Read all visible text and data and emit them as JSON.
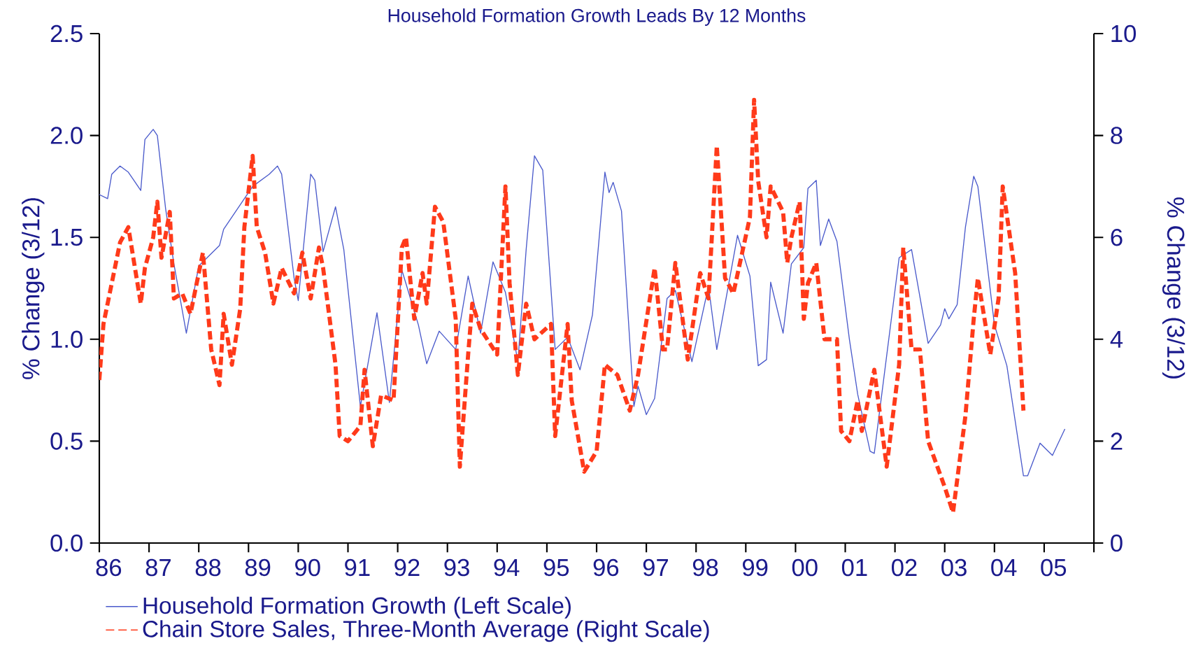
{
  "chart_data": {
    "type": "line",
    "title": "Household Formation Growth Leads By 12 Months",
    "ylabel": "% Change (3/12)",
    "y2label": "% Change (3/12)",
    "xlim": [
      "1986",
      "2006"
    ],
    "ylim": [
      0,
      2.5
    ],
    "y2lim": [
      0,
      10
    ],
    "xticks": [
      {
        "value": "1986",
        "label": "86"
      },
      {
        "value": "1987",
        "label": "87"
      },
      {
        "value": "1988",
        "label": "88"
      },
      {
        "value": "1989",
        "label": "89"
      },
      {
        "value": "1990",
        "label": "90"
      },
      {
        "value": "1991",
        "label": "91"
      },
      {
        "value": "1992",
        "label": "92"
      },
      {
        "value": "1993",
        "label": "93"
      },
      {
        "value": "1994",
        "label": "94"
      },
      {
        "value": "1995",
        "label": "95"
      },
      {
        "value": "1996",
        "label": "96"
      },
      {
        "value": "1997",
        "label": "97"
      },
      {
        "value": "1998",
        "label": "98"
      },
      {
        "value": "1999",
        "label": "99"
      },
      {
        "value": "2000",
        "label": "00"
      },
      {
        "value": "2001",
        "label": "01"
      },
      {
        "value": "2002",
        "label": "02"
      },
      {
        "value": "2003",
        "label": "03"
      },
      {
        "value": "2004",
        "label": "04"
      },
      {
        "value": "2005",
        "label": "05"
      },
      {
        "value": "2006",
        "label": null
      }
    ],
    "yticks": [
      {
        "value": 0,
        "label": "0.0"
      },
      0.5,
      {
        "value": 1,
        "label": "1.0"
      },
      1.5,
      {
        "value": 2,
        "label": "2.0"
      },
      2.5
    ],
    "y2ticks": [
      0,
      2,
      4,
      6,
      8,
      10
    ],
    "legend": "bottom",
    "series": [
      {
        "name": "Household Formation Growth (Left Scale)",
        "color": "#4a5acb",
        "line_style": "solid",
        "x": [
          "1986-01",
          "1986-03",
          "1986-04",
          "1986-06",
          "1986-08",
          "1986-11",
          "1986-12",
          "1987-02",
          "1987-03",
          "1987-05",
          "1987-07",
          "1987-10",
          "1988-01",
          "1988-06",
          "1988-07",
          "1988-09",
          "1989-02",
          "1989-06",
          "1989-08",
          "1989-09",
          "1989-12",
          "1990-01",
          "1990-04",
          "1990-05",
          "1990-07",
          "1990-10",
          "1990-12",
          "1991-04",
          "1991-08",
          "1991-11",
          "1992-02",
          "1992-06",
          "1992-08",
          "1992-11",
          "1993-03",
          "1993-06",
          "1993-09",
          "1993-12",
          "1994-03",
          "1994-06",
          "1994-08",
          "1994-10",
          "1994-12",
          "1995-03",
          "1995-06",
          "1995-09",
          "1995-12",
          "1996-03",
          "1996-04",
          "1996-05",
          "1996-07",
          "1996-10",
          "1996-11",
          "1997-01",
          "1997-03",
          "1997-06",
          "1997-08",
          "1997-12",
          "1998-04",
          "1998-06",
          "1998-11",
          "1999-02",
          "1999-04",
          "1999-06",
          "1999-07",
          "1999-10",
          "1999-12",
          "2000-03",
          "2000-04",
          "2000-06",
          "2000-07",
          "2000-09",
          "2000-11",
          "2001-02",
          "2001-04",
          "2001-07",
          "2001-08",
          "2002-02",
          "2002-05",
          "2002-09",
          "2002-12",
          "2003-01",
          "2003-02",
          "2003-04",
          "2003-06",
          "2003-08",
          "2003-09",
          "2004-01",
          "2004-04",
          "2004-08",
          "2004-09",
          "2004-12",
          "2005-02",
          "2005-03",
          "2005-06"
        ],
        "values": [
          1.71,
          1.69,
          1.81,
          1.85,
          1.82,
          1.73,
          1.98,
          2.03,
          2.0,
          1.64,
          1.37,
          1.03,
          1.36,
          1.46,
          1.54,
          1.6,
          1.75,
          1.81,
          1.85,
          1.81,
          1.3,
          1.19,
          1.81,
          1.78,
          1.43,
          1.65,
          1.44,
          0.67,
          1.13,
          0.69,
          1.34,
          1.07,
          0.88,
          1.04,
          0.95,
          1.31,
          1.03,
          1.38,
          1.23,
          0.89,
          1.44,
          1.9,
          1.83,
          0.95,
          1.01,
          0.85,
          1.12,
          1.82,
          1.72,
          1.77,
          1.63,
          0.67,
          0.77,
          0.63,
          0.71,
          1.2,
          1.24,
          0.89,
          1.26,
          0.95,
          1.51,
          1.31,
          0.87,
          0.9,
          1.28,
          1.03,
          1.37,
          1.45,
          1.74,
          1.78,
          1.46,
          1.59,
          1.48,
          1.0,
          0.73,
          0.45,
          0.44,
          1.4,
          1.44,
          0.98,
          1.07,
          1.15,
          1.1,
          1.17,
          1.55,
          1.8,
          1.75,
          1.07,
          0.87,
          0.33,
          0.33,
          0.49,
          0.45,
          0.43,
          0.56
        ]
      },
      {
        "name": "Chain Store Sales, Three-Month Average (Right Scale)",
        "color": "#ff3a1a",
        "line_style": "dashed",
        "axis": "y2",
        "x": [
          "1986-01",
          "1986-02",
          "1986-04",
          "1986-06",
          "1986-08",
          "1986-11",
          "1986-12",
          "1987-02",
          "1987-03",
          "1987-04",
          "1987-06",
          "1987-07",
          "1987-09",
          "1987-11",
          "1988-02",
          "1988-04",
          "1988-06",
          "1988-07",
          "1988-09",
          "1988-11",
          "1988-12",
          "1989-02",
          "1989-03",
          "1989-05",
          "1989-07",
          "1989-09",
          "1989-12",
          "1990-02",
          "1990-04",
          "1990-06",
          "1990-07",
          "1990-10",
          "1990-11",
          "1991-01",
          "1991-04",
          "1991-05",
          "1991-07",
          "1991-09",
          "1991-12",
          "1992-02",
          "1992-03",
          "1992-05",
          "1992-07",
          "1992-08",
          "1992-10",
          "1992-12",
          "1993-03",
          "1993-04",
          "1993-06",
          "1993-07",
          "1993-09",
          "1994-01",
          "1994-03",
          "1994-04",
          "1994-06",
          "1994-08",
          "1994-10",
          "1995-02",
          "1995-03",
          "1995-06",
          "1995-07",
          "1995-10",
          "1996-01",
          "1996-03",
          "1996-06",
          "1996-09",
          "1996-11",
          "1997-03",
          "1997-05",
          "1997-06",
          "1997-08",
          "1997-11",
          "1998-02",
          "1998-04",
          "1998-06",
          "1998-08",
          "1998-10",
          "1999-02",
          "1999-03",
          "1999-04",
          "1999-06",
          "1999-07",
          "1999-10",
          "1999-11",
          "1999-12",
          "2000-02",
          "2000-03",
          "2000-04",
          "2000-06",
          "2000-08",
          "2000-11",
          "2000-12",
          "2001-02",
          "2001-04",
          "2001-05",
          "2001-08",
          "2001-11",
          "2002-02",
          "2002-03",
          "2002-05",
          "2002-07",
          "2002-09",
          "2003-01",
          "2003-03",
          "2003-06",
          "2003-08",
          "2003-09",
          "2003-12",
          "2004-02",
          "2004-03",
          "2004-06",
          "2004-08"
        ],
        "values": [
          3.2,
          4.3,
          5.1,
          5.9,
          6.2,
          4.7,
          5.4,
          6.0,
          6.7,
          5.6,
          6.5,
          4.8,
          4.9,
          4.5,
          5.7,
          3.8,
          3.1,
          4.5,
          3.5,
          4.6,
          6.2,
          7.6,
          6.2,
          5.7,
          4.7,
          5.4,
          4.9,
          5.7,
          4.8,
          5.8,
          5.4,
          3.5,
          2.1,
          2.0,
          2.3,
          3.4,
          1.9,
          2.9,
          2.8,
          5.8,
          6.0,
          4.4,
          5.3,
          4.7,
          6.6,
          6.3,
          4.4,
          1.5,
          3.7,
          4.7,
          4.2,
          3.7,
          7.0,
          5.1,
          3.3,
          4.7,
          4.0,
          4.3,
          2.1,
          4.3,
          2.8,
          1.4,
          1.8,
          3.5,
          3.3,
          2.6,
          3.3,
          5.4,
          3.8,
          3.8,
          5.5,
          3.6,
          5.3,
          4.8,
          7.8,
          5.2,
          4.9,
          6.4,
          8.7,
          7.1,
          6.0,
          7.0,
          6.5,
          5.5,
          6.0,
          6.7,
          4.4,
          5.1,
          5.5,
          4.0,
          4.0,
          2.2,
          2.0,
          2.8,
          2.2,
          3.4,
          1.5,
          3.5,
          5.8,
          3.8,
          3.8,
          2.0,
          1.1,
          0.6,
          2.5,
          4.4,
          5.2,
          3.7,
          4.8,
          7.0,
          5.3,
          2.6
        ]
      }
    ]
  }
}
